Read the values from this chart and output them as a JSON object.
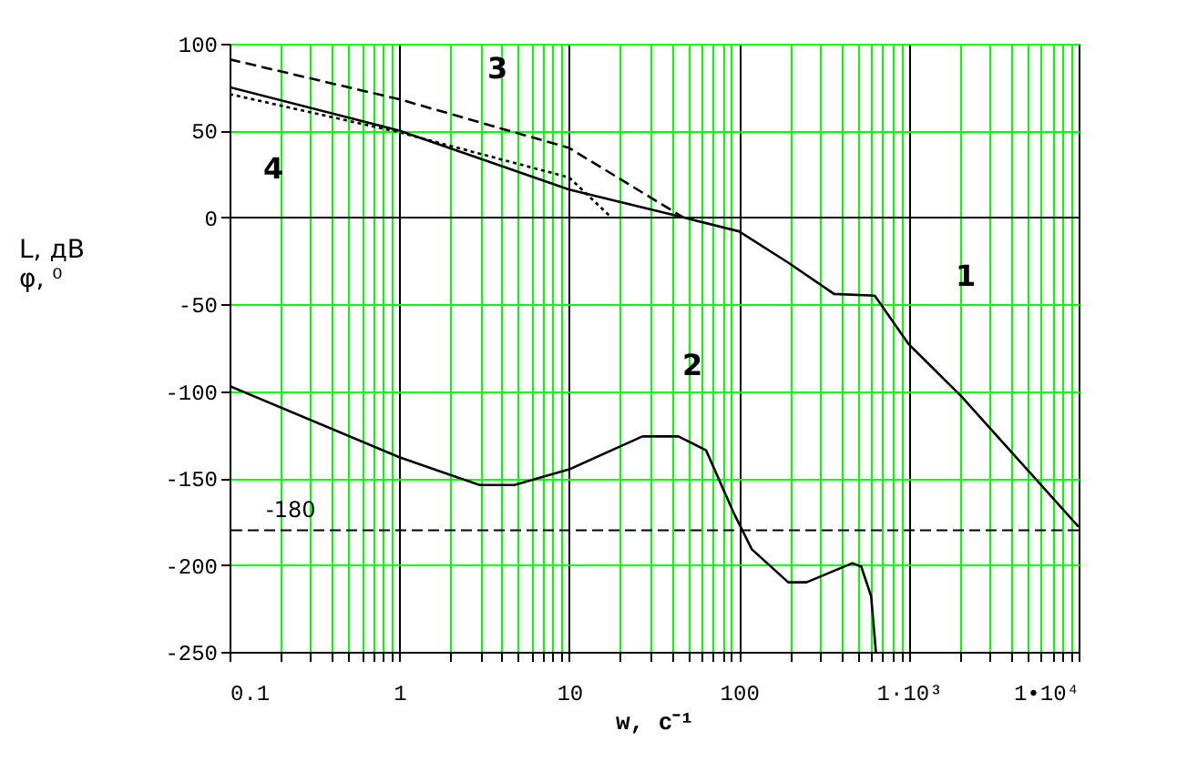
{
  "chart_data": {
    "type": "line",
    "xlabel": "w, c⁻¹",
    "ylabel": "L, дВ\nφ, ⁰",
    "log": "x",
    "grid": true,
    "marker": "none",
    "xlim": [
      0.1,
      10000
    ],
    "ylim": [
      -250,
      100
    ],
    "xticks": [
      0.1,
      {
        "value": 0.2,
        "label": null
      },
      {
        "value": 0.3,
        "label": null
      },
      {
        "value": 0.4,
        "label": null
      },
      {
        "value": 0.5,
        "label": null
      },
      {
        "value": 0.6,
        "label": null
      },
      {
        "value": 0.7,
        "label": null
      },
      {
        "value": 0.8,
        "label": null
      },
      {
        "value": 0.9,
        "label": null
      },
      1,
      {
        "value": 2,
        "label": null
      },
      {
        "value": 3,
        "label": null
      },
      {
        "value": 4,
        "label": null
      },
      {
        "value": 5,
        "label": null
      },
      {
        "value": 6,
        "label": null
      },
      {
        "value": 7,
        "label": null
      },
      {
        "value": 8,
        "label": null
      },
      {
        "value": 9,
        "label": null
      },
      10,
      {
        "value": 20,
        "label": null
      },
      {
        "value": 30,
        "label": null
      },
      {
        "value": 40,
        "label": null
      },
      {
        "value": 50,
        "label": null
      },
      {
        "value": 60,
        "label": null
      },
      {
        "value": 70,
        "label": null
      },
      {
        "value": 80,
        "label": null
      },
      {
        "value": 90,
        "label": null
      },
      100,
      {
        "value": 200,
        "label": null
      },
      {
        "value": 300,
        "label": null
      },
      {
        "value": 400,
        "label": null
      },
      {
        "value": 500,
        "label": null
      },
      {
        "value": 600,
        "label": null
      },
      {
        "value": 700,
        "label": null
      },
      {
        "value": 800,
        "label": null
      },
      {
        "value": 900,
        "label": null
      },
      {
        "value": 1000,
        "label": "1·10³"
      },
      {
        "value": 2000,
        "label": null
      },
      {
        "value": 3000,
        "label": null
      },
      {
        "value": 4000,
        "label": null
      },
      {
        "value": 5000,
        "label": null
      },
      {
        "value": 6000,
        "label": null
      },
      {
        "value": 7000,
        "label": null
      },
      {
        "value": 8000,
        "label": null
      },
      {
        "value": 9000,
        "label": null
      },
      {
        "value": 10000,
        "label": "1•10⁴"
      }
    ],
    "yticks": [
      -250,
      -200,
      -150,
      -100,
      -50,
      0,
      50,
      100
    ],
    "series": [
      {
        "color": "#000000",
        "line_style": "solid",
        "x": [
          0.1,
          1,
          10,
          47,
          100,
          195,
          363,
          630,
          1000,
          2040,
          10000
        ],
        "values": [
          75,
          50,
          16,
          0,
          -8,
          -26,
          -44,
          -45,
          -73,
          -103,
          -178
        ]
      },
      {
        "color": "#000000",
        "line_style": "solid",
        "x": [
          0.1,
          1,
          2.97,
          4.75,
          10,
          27,
          44,
          64,
          93,
          119,
          195,
          250,
          465,
          525,
          600,
          640
        ],
        "values": [
          -97,
          -138,
          -154,
          -154,
          -145,
          -126,
          -126,
          -134,
          -170,
          -191,
          -210,
          -210,
          -199,
          -201,
          -218,
          -250
        ]
      },
      {
        "color": "#000000",
        "line_style": "dashed",
        "x": [
          0.1,
          1,
          10,
          47
        ],
        "values": [
          91,
          68,
          40,
          0
        ]
      },
      {
        "color": "#000000",
        "line_style": "dotted",
        "x": [
          0.1,
          1,
          10,
          17.7
        ],
        "values": [
          71,
          49,
          23,
          0
        ]
      }
    ],
    "ref_lines": [
      {
        "axis": "y",
        "value": -180,
        "label": "-180",
        "color": "#000000",
        "line_style": "dashed"
      }
    ],
    "annotations": [
      "1",
      "2",
      "3",
      "4"
    ]
  }
}
